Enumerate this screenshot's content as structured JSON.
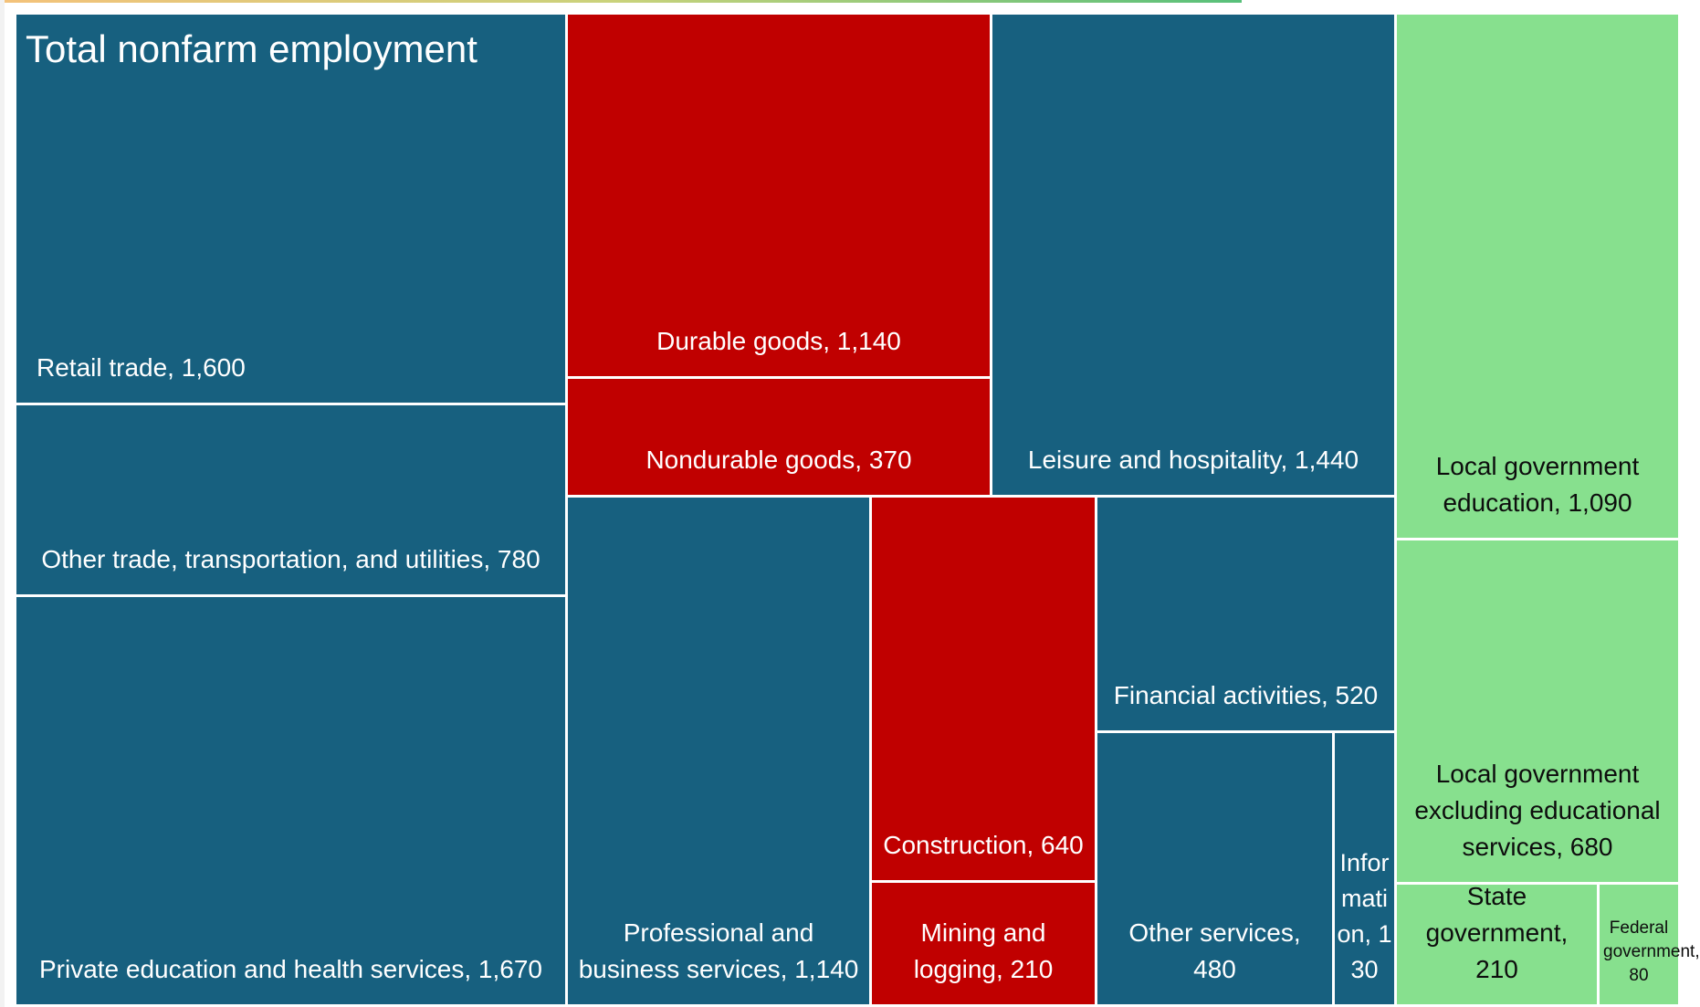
{
  "chart_data": {
    "type": "treemap",
    "title": "Total nonfarm employment",
    "colors": {
      "private_services": "#17607f",
      "goods_producing": "#c00000",
      "government": "#87e08e",
      "border": "#ffffff"
    },
    "items": [
      {
        "name": "Retail trade",
        "value": 1600,
        "group": "private_services",
        "label": "Retail trade, 1,600"
      },
      {
        "name": "Other trade, transportation, and utilities",
        "value": 780,
        "group": "private_services",
        "label": "Other trade, transportation, and utilities, 780"
      },
      {
        "name": "Private education and health services",
        "value": 1670,
        "group": "private_services",
        "label": "Private education and health services, 1,670"
      },
      {
        "name": "Durable goods",
        "value": 1140,
        "group": "goods_producing",
        "label": "Durable goods, 1,140"
      },
      {
        "name": "Nondurable goods",
        "value": 370,
        "group": "goods_producing",
        "label": "Nondurable goods, 370"
      },
      {
        "name": "Leisure and hospitality",
        "value": 1440,
        "group": "private_services",
        "label": "Leisure and hospitality, 1,440"
      },
      {
        "name": "Local government education",
        "value": 1090,
        "group": "government",
        "label": "Local government education, 1,090"
      },
      {
        "name": "Professional and business services",
        "value": 1140,
        "group": "private_services",
        "label": "Professional and business services, 1,140"
      },
      {
        "name": "Construction",
        "value": 640,
        "group": "goods_producing",
        "label": "Construction, 640"
      },
      {
        "name": "Mining and logging",
        "value": 210,
        "group": "goods_producing",
        "label": "Mining and logging, 210"
      },
      {
        "name": "Financial activities",
        "value": 520,
        "group": "private_services",
        "label": "Financial activities, 520"
      },
      {
        "name": "Other services",
        "value": 480,
        "group": "private_services",
        "label": "Other services, 480"
      },
      {
        "name": "Information",
        "value": 130,
        "group": "private_services",
        "label": "Information, 130"
      },
      {
        "name": "Local government excluding educational services",
        "value": 680,
        "group": "government",
        "label": "Local government excluding educational services, 680"
      },
      {
        "name": "State government",
        "value": 210,
        "group": "government",
        "label": "State government, 210"
      },
      {
        "name": "Federal government",
        "value": 80,
        "group": "government",
        "label": "Federal government, 80"
      }
    ]
  }
}
